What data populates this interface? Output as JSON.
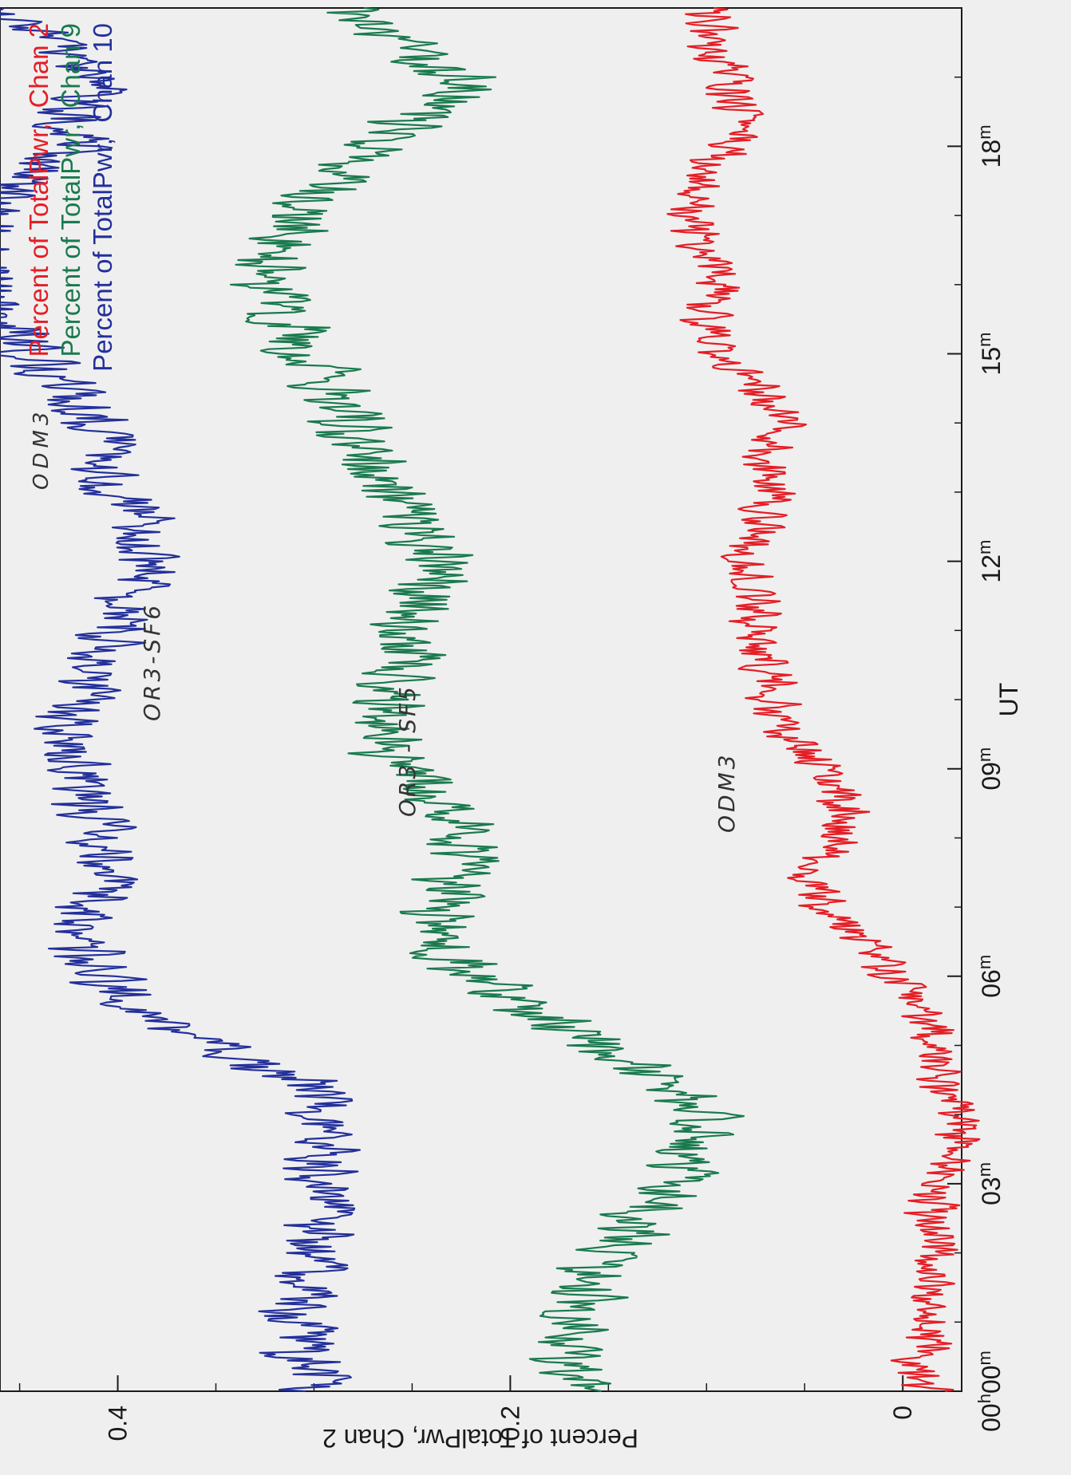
{
  "chart_data": {
    "type": "line",
    "orientation": "rotated-90-ccw",
    "xlabel": "UT",
    "ylabel": "Percent of TotalPwr, Chan 2",
    "xlim": [
      0,
      20
    ],
    "ylim": [
      -0.03,
      0.46
    ],
    "x_ticks": [
      {
        "value": 0,
        "label": "00h00m"
      },
      {
        "value": 3,
        "label": "03m"
      },
      {
        "value": 6,
        "label": "06m"
      },
      {
        "value": 9,
        "label": "09m"
      },
      {
        "value": 12,
        "label": "12m"
      },
      {
        "value": 15,
        "label": "15m"
      },
      {
        "value": 18,
        "label": "18m"
      }
    ],
    "y_ticks": [
      {
        "value": 0,
        "label": "0"
      },
      {
        "value": 0.2,
        "label": "0.2"
      },
      {
        "value": 0.4,
        "label": "0.4"
      }
    ],
    "legend": {
      "placement": "top-left",
      "entries": [
        {
          "prefix": "Percent of TotalPwr,",
          "label": "Chan 2",
          "color": "#e41e26"
        },
        {
          "prefix": "Percent of TotalPwr,",
          "label": "Chan 9",
          "color": "#1a7a4e"
        },
        {
          "prefix": "Percent of TotalPwr,",
          "label": "Chan 10",
          "color": "#23309a"
        }
      ]
    },
    "series": [
      {
        "label": "Chan 2",
        "color": "#e41e26",
        "x": [
          0,
          0.5,
          1,
          1.5,
          2,
          2.5,
          3,
          3.5,
          4,
          4.5,
          5,
          5.5,
          6,
          6.5,
          7,
          7.5,
          8,
          8.5,
          9,
          9.5,
          10,
          10.5,
          11,
          11.5,
          12,
          12.5,
          13,
          13.5,
          14,
          14.5,
          15,
          15.5,
          16,
          16.5,
          17,
          17.5,
          18,
          18.5,
          19,
          19.5,
          20
        ],
        "y": [
          -0.01,
          -0.01,
          -0.015,
          -0.015,
          -0.02,
          -0.015,
          -0.02,
          -0.025,
          -0.025,
          -0.02,
          -0.02,
          -0.01,
          0.005,
          0.02,
          0.04,
          0.045,
          0.035,
          0.03,
          0.04,
          0.06,
          0.065,
          0.07,
          0.075,
          0.075,
          0.08,
          0.07,
          0.065,
          0.07,
          0.06,
          0.075,
          0.09,
          0.1,
          0.095,
          0.1,
          0.11,
          0.1,
          0.085,
          0.085,
          0.09,
          0.095,
          0.1
        ],
        "noise": 0.012
      },
      {
        "label": "Chan 9",
        "color": "#1a7a4e",
        "x": [
          0,
          0.5,
          1,
          1.5,
          2,
          2.5,
          3,
          3.5,
          4,
          4.5,
          5,
          5.5,
          6,
          6.5,
          7,
          7.5,
          8,
          8.5,
          9,
          9.5,
          10,
          10.5,
          11,
          11.5,
          12,
          12.5,
          13,
          13.5,
          14,
          14.5,
          15,
          15.5,
          16,
          16.5,
          17,
          17.5,
          18,
          18.5,
          19,
          19.5,
          20
        ],
        "y": [
          0.16,
          0.165,
          0.17,
          0.16,
          0.15,
          0.13,
          0.12,
          0.11,
          0.1,
          0.12,
          0.155,
          0.19,
          0.22,
          0.235,
          0.24,
          0.23,
          0.225,
          0.235,
          0.25,
          0.27,
          0.265,
          0.255,
          0.25,
          0.245,
          0.24,
          0.25,
          0.265,
          0.275,
          0.28,
          0.29,
          0.305,
          0.315,
          0.32,
          0.32,
          0.31,
          0.285,
          0.27,
          0.24,
          0.225,
          0.26,
          0.28
        ],
        "noise": 0.018
      },
      {
        "label": "Chan 10",
        "color": "#23309a",
        "x": [
          0,
          0.5,
          1,
          1.5,
          2,
          2.5,
          3,
          3.5,
          4,
          4.5,
          5,
          5.5,
          6,
          6.5,
          7,
          7.5,
          8,
          8.5,
          9,
          9.5,
          10,
          10.5,
          11,
          11.5,
          12,
          12.5,
          13,
          13.5,
          14,
          14.5,
          15,
          15.5,
          16,
          16.5,
          17,
          17.5,
          18,
          18.5,
          19,
          19.5,
          20
        ],
        "y": [
          0.3,
          0.305,
          0.31,
          0.305,
          0.3,
          0.295,
          0.3,
          0.3,
          0.29,
          0.31,
          0.35,
          0.385,
          0.405,
          0.42,
          0.415,
          0.405,
          0.41,
          0.415,
          0.42,
          0.425,
          0.42,
          0.41,
          0.405,
          0.395,
          0.385,
          0.385,
          0.4,
          0.405,
          0.41,
          0.425,
          0.44,
          0.46,
          0.465,
          0.47,
          0.465,
          0.445,
          0.425,
          0.42,
          0.41,
          0.43,
          0.46
        ],
        "noise": 0.017
      }
    ],
    "annotations": [
      {
        "text": "ODM3",
        "style": "handwritten"
      },
      {
        "text": "OR3-SF6",
        "style": "handwritten"
      },
      {
        "text": "OR3 - SF5",
        "style": "handwritten"
      },
      {
        "text": "ODM3",
        "style": "handwritten"
      }
    ]
  }
}
